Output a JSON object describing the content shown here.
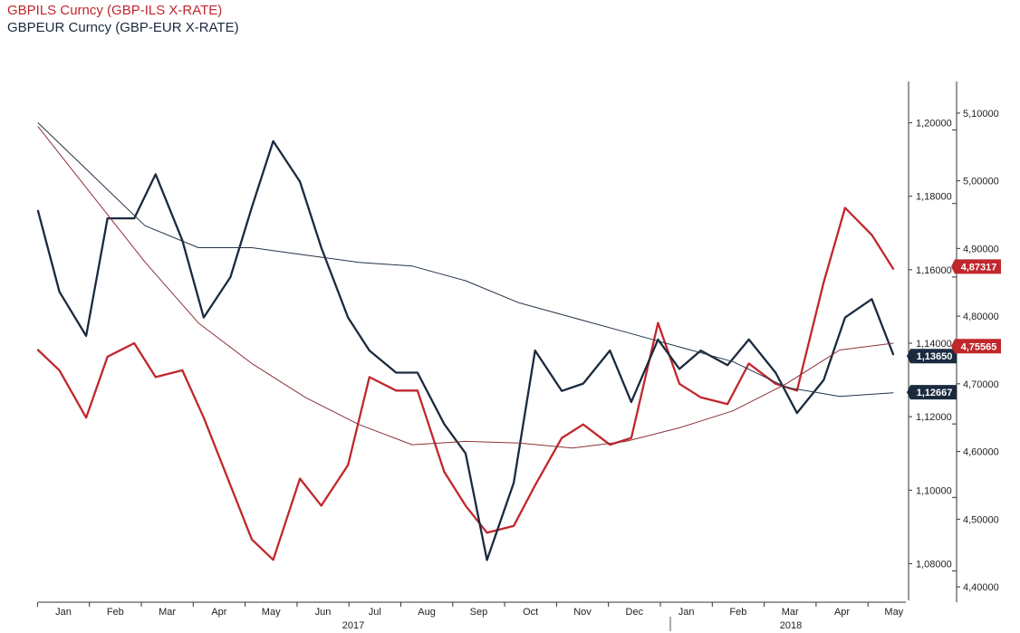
{
  "chart_data": {
    "type": "line",
    "legend": [
      {
        "name": "GBPILS Curncy (GBP-ILS X-RATE)",
        "color": "#c0272d"
      },
      {
        "name": "GBPEUR Curncy (GBP-EUR X-RATE)",
        "color": "#1b2a3f"
      }
    ],
    "months": [
      "Jan",
      "Feb",
      "Mar",
      "Apr",
      "May",
      "Jun",
      "Jul",
      "Aug",
      "Sep",
      "Oct",
      "Nov",
      "Dec",
      "Jan",
      "Feb",
      "Mar",
      "Apr",
      "May"
    ],
    "years": [
      "2017",
      "2018"
    ],
    "axes": {
      "eur": {
        "min": 1.07,
        "max": 1.21,
        "ticks": [
          "1,08000",
          "1,10000",
          "1,12000",
          "1,14000",
          "1,16000",
          "1,18000",
          "1,20000"
        ],
        "tick_values": [
          1.08,
          1.1,
          1.12,
          1.14,
          1.16,
          1.18,
          1.2
        ]
      },
      "ils": {
        "min": 4.38,
        "max": 5.14,
        "ticks": [
          "4,40000",
          "4,50000",
          "4,60000",
          "4,70000",
          "4,80000",
          "4,90000",
          "5,00000",
          "5,10000"
        ],
        "tick_values": [
          4.4,
          4.5,
          4.6,
          4.7,
          4.8,
          4.9,
          5.0,
          5.1
        ]
      }
    },
    "series": [
      {
        "name": "GBPILS Curncy (GBP-ILS X-RATE)",
        "axis": "ils",
        "color": "#c0272d",
        "x": [
          0.0,
          0.4,
          0.9,
          1.3,
          1.8,
          2.2,
          2.7,
          3.1,
          3.6,
          4.0,
          4.4,
          4.9,
          5.3,
          5.8,
          6.2,
          6.7,
          7.1,
          7.6,
          8.0,
          8.4,
          8.9,
          9.3,
          9.8,
          10.2,
          10.7,
          11.1,
          11.6,
          12.0,
          12.4,
          12.9,
          13.3,
          13.8,
          14.2,
          14.7,
          15.1,
          15.6,
          16.0
        ],
        "y": [
          4.75,
          4.72,
          4.65,
          4.74,
          4.76,
          4.71,
          4.72,
          4.65,
          4.55,
          4.47,
          4.44,
          4.56,
          4.52,
          4.58,
          4.71,
          4.69,
          4.69,
          4.57,
          4.52,
          4.48,
          4.49,
          4.55,
          4.62,
          4.64,
          4.61,
          4.62,
          4.79,
          4.7,
          4.68,
          4.67,
          4.73,
          4.7,
          4.69,
          4.85,
          4.96,
          4.92,
          4.87
        ]
      },
      {
        "name": "GBPEUR Curncy (GBP-EUR X-RATE)",
        "axis": "eur",
        "color": "#1b2a3f",
        "x": [
          0.0,
          0.4,
          0.9,
          1.3,
          1.8,
          2.2,
          2.7,
          3.1,
          3.6,
          4.0,
          4.4,
          4.9,
          5.3,
          5.8,
          6.2,
          6.7,
          7.1,
          7.6,
          8.0,
          8.4,
          8.9,
          9.3,
          9.8,
          10.2,
          10.7,
          11.1,
          11.6,
          12.0,
          12.4,
          12.9,
          13.3,
          13.8,
          14.2,
          14.7,
          15.1,
          15.6,
          16.0
        ],
        "y": [
          1.176,
          1.154,
          1.142,
          1.174,
          1.174,
          1.186,
          1.168,
          1.147,
          1.158,
          1.177,
          1.195,
          1.184,
          1.166,
          1.147,
          1.138,
          1.132,
          1.132,
          1.118,
          1.11,
          1.081,
          1.102,
          1.138,
          1.127,
          1.129,
          1.138,
          1.124,
          1.141,
          1.133,
          1.138,
          1.134,
          1.141,
          1.132,
          1.121,
          1.13,
          1.147,
          1.152,
          1.137
        ]
      },
      {
        "name": "GBPILS moving average",
        "axis": "ils",
        "color": "#8a3338",
        "x": [
          0.0,
          1.0,
          2.0,
          3.0,
          4.0,
          5.0,
          6.0,
          7.0,
          8.0,
          9.0,
          10.0,
          11.0,
          12.0,
          13.0,
          14.0,
          15.0,
          16.0
        ],
        "y": [
          5.08,
          4.98,
          4.88,
          4.79,
          4.73,
          4.68,
          4.64,
          4.61,
          4.615,
          4.6125,
          4.605,
          4.615,
          4.635,
          4.66,
          4.7,
          4.75,
          4.76
        ]
      },
      {
        "name": "GBPEUR moving average",
        "axis": "eur",
        "color": "#243447",
        "x": [
          0.0,
          1.0,
          2.0,
          3.0,
          4.0,
          5.0,
          6.0,
          7.0,
          8.0,
          9.0,
          10.0,
          11.0,
          12.0,
          13.0,
          14.0,
          15.0,
          16.0
        ],
        "y": [
          1.2,
          1.186,
          1.172,
          1.166,
          1.166,
          1.164,
          1.162,
          1.161,
          1.157,
          1.151,
          1.147,
          1.143,
          1.139,
          1.135,
          1.128,
          1.1255,
          1.1265
        ]
      }
    ],
    "last_values": [
      {
        "label": "4,87317",
        "axis": "ils",
        "value": 4.87317,
        "color": "#c0272d"
      },
      {
        "label": "1,13650",
        "axis": "eur",
        "value": 1.1365,
        "color": "#1b2a3f"
      },
      {
        "label": "4,75565",
        "axis": "ils",
        "value": 4.75565,
        "color": "#c0272d"
      },
      {
        "label": "1,12667",
        "axis": "eur",
        "value": 1.12667,
        "color": "#1b2a3f"
      }
    ]
  }
}
